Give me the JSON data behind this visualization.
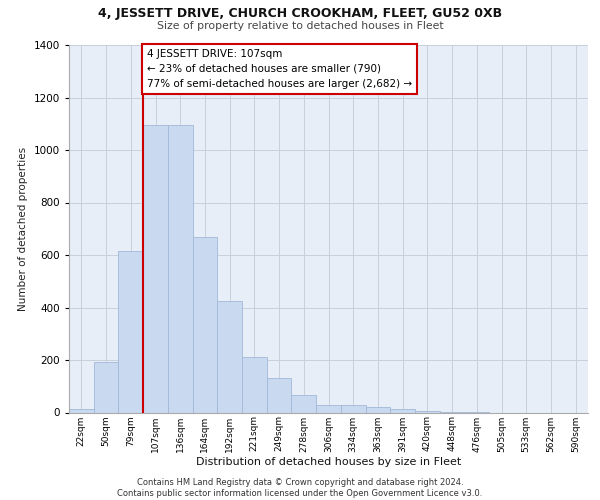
{
  "title": "4, JESSETT DRIVE, CHURCH CROOKHAM, FLEET, GU52 0XB",
  "subtitle": "Size of property relative to detached houses in Fleet",
  "xlabel": "Distribution of detached houses by size in Fleet",
  "ylabel": "Number of detached properties",
  "bar_labels": [
    "22sqm",
    "50sqm",
    "79sqm",
    "107sqm",
    "136sqm",
    "164sqm",
    "192sqm",
    "221sqm",
    "249sqm",
    "278sqm",
    "306sqm",
    "334sqm",
    "363sqm",
    "391sqm",
    "420sqm",
    "448sqm",
    "476sqm",
    "505sqm",
    "533sqm",
    "562sqm",
    "590sqm"
  ],
  "bar_values": [
    13,
    193,
    615,
    1095,
    1095,
    670,
    425,
    213,
    130,
    65,
    27,
    27,
    20,
    12,
    5,
    3,
    2,
    0,
    0,
    0,
    0
  ],
  "bar_color": "#c9d9f0",
  "bar_edgecolor": "#a0b8d8",
  "vline_x": 2.5,
  "vline_color": "#cc0000",
  "annotation_text": "4 JESSETT DRIVE: 107sqm\n← 23% of detached houses are smaller (790)\n77% of semi-detached houses are larger (2,682) →",
  "annotation_box_edgecolor": "#cc0000",
  "annotation_box_facecolor": "#ffffff",
  "ylim": [
    0,
    1400
  ],
  "yticks": [
    0,
    200,
    400,
    600,
    800,
    1000,
    1200,
    1400
  ],
  "grid_color": "#c8d0dc",
  "background_color": "#e8eef8",
  "footer_line1": "Contains HM Land Registry data © Crown copyright and database right 2024.",
  "footer_line2": "Contains public sector information licensed under the Open Government Licence v3.0."
}
